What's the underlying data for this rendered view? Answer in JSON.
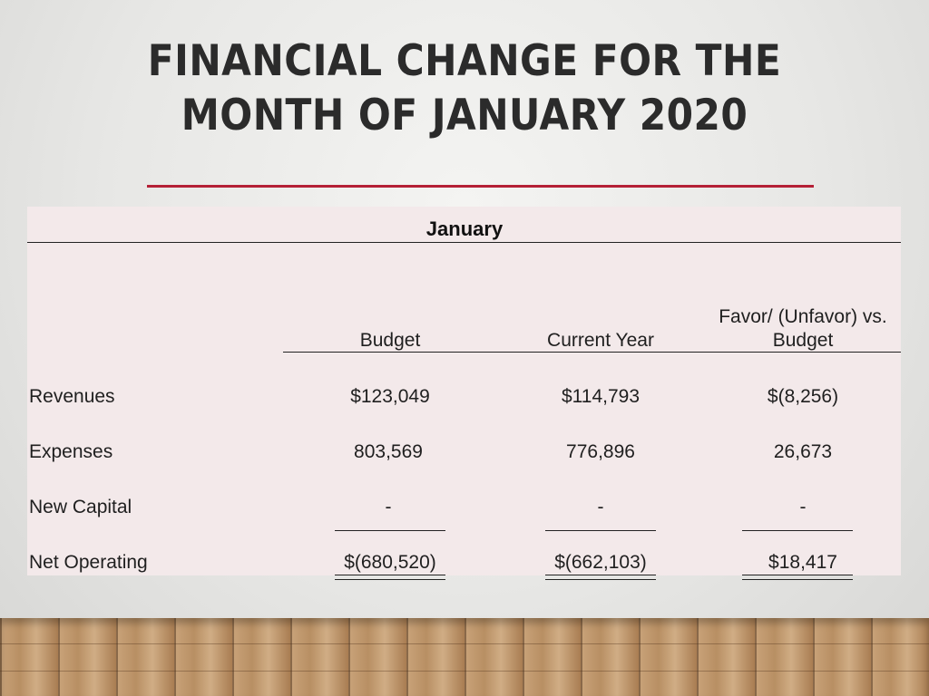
{
  "slide": {
    "title_line1": "FINANCIAL CHANGE FOR THE",
    "title_line2": "MONTH OF JANUARY 2020",
    "accent_color": "#b52036"
  },
  "table": {
    "period": "January",
    "headers": {
      "budget": "Budget",
      "current_year": "Current Year",
      "variance_line1": "Favor/ (Unfavor) vs.",
      "variance_line2": "Budget"
    },
    "rows": [
      {
        "label": "Revenues",
        "budget": "$123,049",
        "current_year": "$114,793",
        "variance": "$(8,256)"
      },
      {
        "label": "Expenses",
        "budget": "803,569",
        "current_year": "776,896",
        "variance": "26,673"
      },
      {
        "label": "New Capital",
        "budget": "-",
        "current_year": "-",
        "variance": "-"
      },
      {
        "label": "Net Operating",
        "budget": "$(680,520)",
        "current_year": "$(662,103)",
        "variance": "$18,417"
      }
    ]
  }
}
